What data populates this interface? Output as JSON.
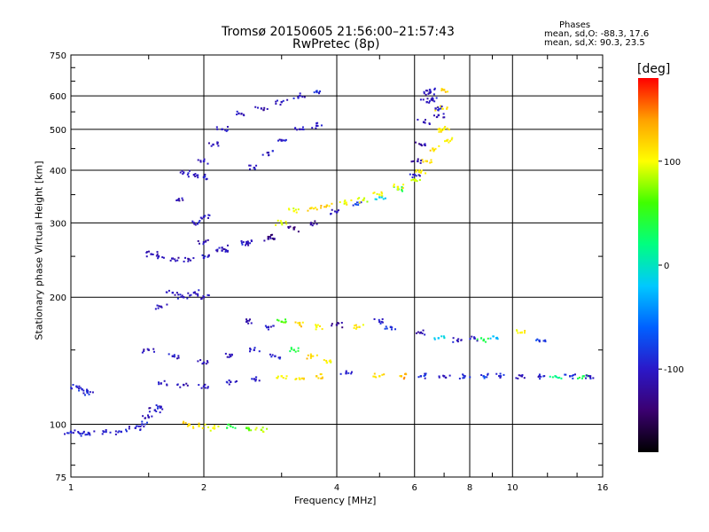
{
  "header": {
    "title_line1": "Tromsø 20150605 21:56:00–21:57:43",
    "title_line2": "RwPretec (8p)"
  },
  "phases": {
    "heading": "Phases",
    "o_line": "mean, sd,O: -88.3, 17.6",
    "x_line": "mean, sd,X:  90.3, 23.5"
  },
  "colorbar": {
    "title": "[deg]",
    "ticks": [
      {
        "value": 100,
        "label": "100"
      },
      {
        "value": 0,
        "label": "0"
      },
      {
        "value": -100,
        "label": "-100"
      }
    ],
    "range": [
      -180,
      180
    ],
    "colors": [
      "#000000",
      "#3b0070",
      "#2b18c8",
      "#0060ff",
      "#00c8ff",
      "#00ff80",
      "#40ff00",
      "#ffff00",
      "#ffa000",
      "#ff0000"
    ]
  },
  "chart_data": {
    "type": "scatter",
    "title": "Tromsø 20150605 21:56:00–21:57:43",
    "subtitle": "RwPretec (8p)",
    "xlabel": "Frequency [MHz]",
    "ylabel": "Stationary phase Virtual Height [km]",
    "x_scale": "log",
    "y_scale": "log",
    "xlim": [
      1,
      16
    ],
    "ylim": [
      75,
      750
    ],
    "x_ticks": [
      1,
      2,
      4,
      6,
      8,
      10,
      16
    ],
    "x_tick_labels": [
      "1",
      "2",
      "4",
      "6",
      "8",
      "10",
      "16"
    ],
    "x_grid": [
      2,
      4,
      6,
      8,
      10
    ],
    "y_ticks": [
      75,
      100,
      200,
      300,
      400,
      500,
      600,
      750
    ],
    "y_tick_labels": [
      "75",
      "100",
      "200",
      "300",
      "400",
      "500",
      "600",
      "750"
    ],
    "y_grid": [
      100,
      200,
      300,
      400,
      500,
      600
    ],
    "color_scale": "phase [deg]",
    "series": [
      {
        "points": [
          [
            1.0,
            96,
            -95
          ],
          [
            1.05,
            95,
            -98
          ],
          [
            1.1,
            95,
            -100
          ],
          [
            1.2,
            96,
            -98
          ],
          [
            1.3,
            96,
            -95
          ],
          [
            1.4,
            98,
            -100
          ],
          [
            1.45,
            100,
            -95
          ]
        ]
      },
      {
        "points": [
          [
            1.03,
            123,
            -90
          ],
          [
            1.06,
            121,
            -92
          ],
          [
            1.09,
            119,
            -95
          ],
          [
            1.5,
            104,
            -110
          ],
          [
            1.55,
            108,
            -105
          ],
          [
            1.6,
            110,
            -100
          ]
        ]
      },
      {
        "points": [
          [
            1.52,
            253,
            -105
          ],
          [
            1.58,
            250,
            -110
          ],
          [
            1.7,
            247,
            -115
          ],
          [
            1.85,
            246,
            -110
          ],
          [
            2.0,
            248,
            -100
          ],
          [
            2.2,
            258,
            -105
          ],
          [
            2.5,
            268,
            -110
          ],
          [
            2.8,
            278,
            -140
          ],
          [
            3.2,
            290,
            -130
          ],
          [
            3.5,
            300,
            -120
          ],
          [
            4.0,
            318,
            -100
          ],
          [
            4.5,
            335,
            -80
          ],
          [
            5.0,
            345,
            -20
          ],
          [
            5.5,
            360,
            40
          ],
          [
            6.0,
            380,
            90
          ],
          [
            6.2,
            395,
            110
          ],
          [
            6.4,
            420,
            120
          ],
          [
            6.6,
            450,
            115
          ],
          [
            6.8,
            500,
            110
          ],
          [
            6.9,
            560,
            110
          ],
          [
            7.0,
            620,
            120
          ]
        ]
      },
      {
        "points": [
          [
            2.0,
            270,
            -110
          ],
          [
            2.2,
            262,
            -105
          ],
          [
            2.5,
            270,
            -100
          ],
          [
            2.8,
            275,
            -110
          ],
          [
            3.0,
            300,
            90
          ],
          [
            3.2,
            320,
            100
          ],
          [
            3.5,
            325,
            110
          ],
          [
            3.8,
            330,
            120
          ],
          [
            4.2,
            335,
            100
          ],
          [
            4.6,
            340,
            90
          ],
          [
            5.0,
            350,
            100
          ],
          [
            5.5,
            365,
            110
          ]
        ]
      },
      {
        "points": [
          [
            6.0,
            390,
            -100
          ],
          [
            6.1,
            420,
            -110
          ],
          [
            6.2,
            460,
            -115
          ],
          [
            6.3,
            520,
            -110
          ],
          [
            6.4,
            580,
            -105
          ],
          [
            6.5,
            620,
            -100
          ]
        ]
      },
      {
        "points": [
          [
            2.0,
            420,
            -110
          ],
          [
            2.1,
            460,
            -105
          ],
          [
            2.2,
            500,
            -100
          ],
          [
            2.4,
            545,
            -105
          ],
          [
            2.7,
            560,
            -110
          ],
          [
            3.0,
            580,
            -105
          ],
          [
            3.3,
            600,
            -100
          ],
          [
            3.6,
            615,
            -95
          ]
        ]
      },
      {
        "points": [
          [
            2.6,
            405,
            -100
          ],
          [
            2.8,
            440,
            -105
          ],
          [
            3.0,
            470,
            -100
          ],
          [
            3.3,
            500,
            -105
          ],
          [
            3.6,
            510,
            -100
          ]
        ]
      },
      {
        "points": [
          [
            1.8,
            395,
            -100
          ],
          [
            1.9,
            390,
            -105
          ],
          [
            2.0,
            385,
            -100
          ],
          [
            1.75,
            340,
            -110
          ],
          [
            1.9,
            300,
            -100
          ],
          [
            2.0,
            310,
            -105
          ]
        ]
      },
      {
        "points": [
          [
            1.7,
            205,
            -100
          ],
          [
            1.8,
            200,
            -105
          ],
          [
            1.9,
            205,
            -100
          ],
          [
            2.0,
            200,
            -105
          ],
          [
            1.6,
            190,
            -110
          ]
        ]
      },
      {
        "points": [
          [
            1.5,
            150,
            -110
          ],
          [
            1.7,
            145,
            -105
          ],
          [
            2.0,
            140,
            -100
          ],
          [
            2.3,
            145,
            -105
          ],
          [
            2.6,
            150,
            -100
          ],
          [
            2.9,
            145,
            -95
          ],
          [
            3.2,
            150,
            40
          ],
          [
            3.5,
            145,
            120
          ],
          [
            3.8,
            140,
            100
          ]
        ]
      },
      {
        "points": [
          [
            1.6,
            125,
            -110
          ],
          [
            1.8,
            124,
            -105
          ],
          [
            2.0,
            123,
            -100
          ],
          [
            2.3,
            126,
            -105
          ],
          [
            2.6,
            128,
            -100
          ],
          [
            3.0,
            130,
            100
          ],
          [
            3.3,
            128,
            110
          ],
          [
            3.6,
            130,
            120
          ],
          [
            4.2,
            132,
            -100
          ],
          [
            5.0,
            130,
            110
          ],
          [
            5.6,
            130,
            130
          ],
          [
            6.2,
            130,
            -90
          ],
          [
            7.0,
            130,
            -100
          ],
          [
            7.8,
            130,
            -95
          ],
          [
            8.6,
            130,
            -80
          ],
          [
            9.4,
            130,
            -90
          ],
          [
            10.5,
            130,
            -110
          ],
          [
            11.5,
            130,
            -100
          ],
          [
            12.5,
            130,
            20
          ],
          [
            13.5,
            130,
            -90
          ],
          [
            14.5,
            130,
            40
          ],
          [
            15.0,
            130,
            -100
          ]
        ]
      },
      {
        "points": [
          [
            2.5,
            175,
            -110
          ],
          [
            2.8,
            170,
            -105
          ],
          [
            3.0,
            175,
            60
          ],
          [
            3.3,
            172,
            120
          ],
          [
            3.6,
            170,
            100
          ],
          [
            4.0,
            172,
            -120
          ],
          [
            4.5,
            170,
            110
          ],
          [
            5.0,
            175,
            -100
          ],
          [
            5.3,
            170,
            -90
          ],
          [
            6.2,
            165,
            -110
          ],
          [
            6.8,
            160,
            -20
          ],
          [
            7.5,
            158,
            -100
          ],
          [
            8.2,
            160,
            -100
          ],
          [
            8.6,
            158,
            40
          ],
          [
            9.2,
            160,
            -30
          ],
          [
            10.5,
            165,
            100
          ],
          [
            11.5,
            158,
            -80
          ]
        ]
      },
      {
        "points": [
          [
            1.85,
            100,
            120
          ],
          [
            1.95,
            99,
            110
          ],
          [
            2.1,
            98,
            100
          ],
          [
            2.3,
            99,
            40
          ],
          [
            2.5,
            98,
            60
          ],
          [
            2.7,
            97,
            80
          ]
        ]
      },
      {
        "points": [
          [
            6.5,
            610,
            -110
          ],
          [
            6.6,
            590,
            -105
          ],
          [
            6.7,
            560,
            -100
          ],
          [
            6.8,
            540,
            -110
          ],
          [
            7.0,
            500,
            100
          ],
          [
            7.1,
            470,
            110
          ]
        ]
      }
    ]
  }
}
